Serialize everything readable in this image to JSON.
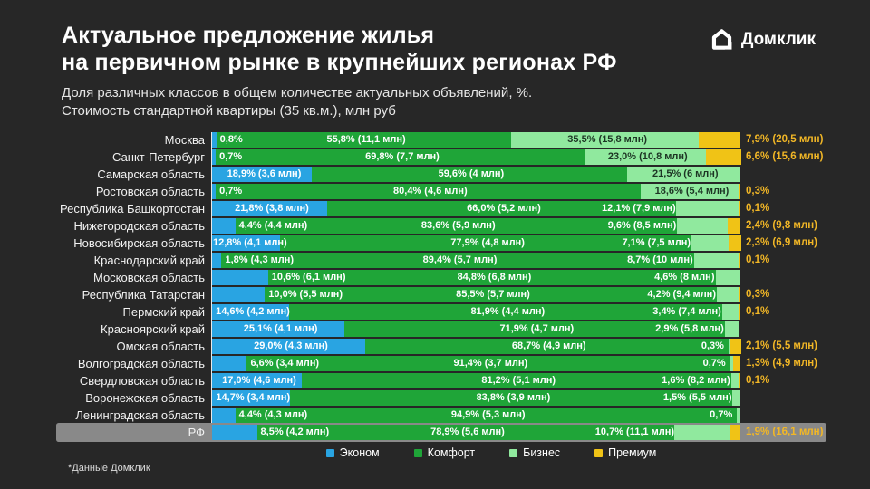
{
  "header": {
    "title_line1": "Актуальное предложение жилья",
    "title_line2": "на первичном рынке в крупнейших регионах РФ",
    "subtitle_line1": "Доля различных классов в общем количестве актуальных объявлений, %.",
    "subtitle_line2": "Стоимость стандартной квартиры (35 кв.м.), млн руб"
  },
  "logo": {
    "text": "Домклик"
  },
  "footnote": "*Данные Домклик",
  "legend": {
    "items": [
      {
        "label": "Эконом",
        "key": "econom"
      },
      {
        "label": "Комфорт",
        "key": "comfort"
      },
      {
        "label": "Бизнес",
        "key": "business"
      },
      {
        "label": "Премиум",
        "key": "premium"
      }
    ]
  },
  "chart_data": {
    "type": "bar",
    "orientation": "horizontal",
    "stacked": true,
    "unit": "%",
    "xlim": [
      0,
      100
    ],
    "grid": false,
    "legend_position": "bottom",
    "series_names": [
      "Эконом",
      "Комфорт",
      "Бизнес",
      "Премиум"
    ],
    "colors": {
      "econom": "#29a4e2",
      "comfort": "#1fa538",
      "business": "#90e99e",
      "premium": "#f0c316",
      "premium_text": "#f2b726",
      "highlight_row_bg": "#898989"
    },
    "rows": [
      {
        "region": "Москва",
        "highlight": false,
        "econom": {
          "pct": 0.8,
          "label": "0,8%"
        },
        "comfort": {
          "pct": 55.8,
          "price_mln": 11.1,
          "label": "55,8% (11,1 млн)"
        },
        "business": {
          "pct": 35.5,
          "price_mln": 15.8,
          "label": "35,5% (15,8 млн)"
        },
        "premium": {
          "pct": 7.9,
          "price_mln": 20.5,
          "label": "7,9% (20,5 млн)"
        }
      },
      {
        "region": "Санкт-Петербург",
        "highlight": false,
        "econom": {
          "pct": 0.7,
          "label": "0,7%"
        },
        "comfort": {
          "pct": 69.8,
          "price_mln": 7.7,
          "label": "69,8% (7,7 млн)"
        },
        "business": {
          "pct": 23.0,
          "price_mln": 10.8,
          "label": "23,0% (10,8 млн)"
        },
        "premium": {
          "pct": 6.6,
          "price_mln": 15.6,
          "label": "6,6% (15,6 млн)"
        }
      },
      {
        "region": "Самарская область",
        "highlight": false,
        "econom": {
          "pct": 18.9,
          "price_mln": 3.6,
          "label": "18,9% (3,6 млн)"
        },
        "comfort": {
          "pct": 59.6,
          "price_mln": 4,
          "label": "59,6% (4 млн)"
        },
        "business": {
          "pct": 21.5,
          "price_mln": 6,
          "label": "21,5% (6 млн)"
        }
      },
      {
        "region": "Ростовская область",
        "highlight": false,
        "econom": {
          "pct": 0.7,
          "label": "0,7%"
        },
        "comfort": {
          "pct": 80.4,
          "price_mln": 4.6,
          "label": "80,4% (4,6 млн)"
        },
        "business": {
          "pct": 18.6,
          "price_mln": 5.4,
          "label": "18,6% (5,4 млн)"
        },
        "premium": {
          "pct": 0.3,
          "label": "0,3%"
        }
      },
      {
        "region": "Республика Башкортостан",
        "highlight": false,
        "econom": {
          "pct": 21.8,
          "price_mln": 3.8,
          "label": "21,8% (3,8 млн)"
        },
        "comfort": {
          "pct": 66.0,
          "price_mln": 5.2,
          "label": "66,0% (5,2 млн)"
        },
        "business": {
          "pct": 12.1,
          "price_mln": 7.9,
          "label": "12,1% (7,9 млн)"
        },
        "premium": {
          "pct": 0.1,
          "label": "0,1%"
        }
      },
      {
        "region": "Нижегородская область",
        "highlight": false,
        "econom": {
          "pct": 4.4,
          "price_mln": 4.4,
          "label": "4,4% (4,4 млн)"
        },
        "comfort": {
          "pct": 83.6,
          "price_mln": 5.9,
          "label": "83,6% (5,9 млн)"
        },
        "business": {
          "pct": 9.6,
          "price_mln": 8.5,
          "label": "9,6% (8,5 млн)"
        },
        "premium": {
          "pct": 2.4,
          "price_mln": 9.8,
          "label": "2,4% (9,8 млн)"
        }
      },
      {
        "region": "Новосибирская область",
        "highlight": false,
        "econom": {
          "pct": 12.8,
          "price_mln": 4.1,
          "label": "12,8% (4,1 млн)"
        },
        "comfort": {
          "pct": 77.9,
          "price_mln": 4.8,
          "label": "77,9% (4,8 млн)"
        },
        "business": {
          "pct": 7.1,
          "price_mln": 7.5,
          "label": "7,1% (7,5 млн)"
        },
        "premium": {
          "pct": 2.3,
          "price_mln": 6.9,
          "label": "2,3% (6,9 млн)"
        }
      },
      {
        "region": "Краснодарский край",
        "highlight": false,
        "econom": {
          "pct": 1.8,
          "price_mln": 4.3,
          "label": "1,8% (4,3 млн)"
        },
        "comfort": {
          "pct": 89.4,
          "price_mln": 5.7,
          "label": "89,4% (5,7 млн)"
        },
        "business": {
          "pct": 8.7,
          "price_mln": 10,
          "label": "8,7% (10 млн)"
        },
        "premium": {
          "pct": 0.1,
          "label": "0,1%"
        }
      },
      {
        "region": "Московская область",
        "highlight": false,
        "econom": {
          "pct": 10.6,
          "price_mln": 6.1,
          "label": "10,6% (6,1 млн)"
        },
        "comfort": {
          "pct": 84.8,
          "price_mln": 6.8,
          "label": "84,8% (6,8 млн)"
        },
        "business": {
          "pct": 4.6,
          "price_mln": 8,
          "label": "4,6% (8 млн)"
        }
      },
      {
        "region": "Республика Татарстан",
        "highlight": false,
        "econom": {
          "pct": 10.0,
          "price_mln": 5.5,
          "label": "10,0% (5,5 млн)"
        },
        "comfort": {
          "pct": 85.5,
          "price_mln": 5.7,
          "label": "85,5% (5,7 млн)"
        },
        "business": {
          "pct": 4.2,
          "price_mln": 9.4,
          "label": "4,2% (9,4 млн)"
        },
        "premium": {
          "pct": 0.3,
          "label": "0,3%"
        }
      },
      {
        "region": "Пермский край",
        "highlight": false,
        "econom": {
          "pct": 14.6,
          "price_mln": 4.2,
          "label": "14,6% (4,2 млн)"
        },
        "comfort": {
          "pct": 81.9,
          "price_mln": 4.4,
          "label": "81,9% (4,4 млн)"
        },
        "business": {
          "pct": 3.4,
          "price_mln": 7.4,
          "label": "3,4% (7,4 млн)"
        },
        "premium": {
          "pct": 0.1,
          "label": "0,1%"
        }
      },
      {
        "region": "Красноярский край",
        "highlight": false,
        "econom": {
          "pct": 25.1,
          "price_mln": 4.1,
          "label": "25,1% (4,1 млн)"
        },
        "comfort": {
          "pct": 71.9,
          "price_mln": 4.7,
          "label": "71,9% (4,7 млн)"
        },
        "business": {
          "pct": 2.9,
          "price_mln": 5.8,
          "label": "2,9% (5,8 млн)"
        }
      },
      {
        "region": "Омская область",
        "highlight": false,
        "econom": {
          "pct": 29.0,
          "price_mln": 4.3,
          "label": "29,0% (4,3 млн)"
        },
        "comfort": {
          "pct": 68.7,
          "price_mln": 4.9,
          "label": "68,7% (4,9 млн)"
        },
        "business": {
          "pct": 0.3,
          "label": "0,3%"
        },
        "premium": {
          "pct": 2.1,
          "price_mln": 5.5,
          "label": "2,1% (5,5 млн)"
        }
      },
      {
        "region": "Волгоградская область",
        "highlight": false,
        "econom": {
          "pct": 6.6,
          "price_mln": 3.4,
          "label": "6,6% (3,4 млн)"
        },
        "comfort": {
          "pct": 91.4,
          "price_mln": 3.7,
          "label": "91,4% (3,7 млн)"
        },
        "business": {
          "pct": 0.7,
          "label": "0,7%"
        },
        "premium": {
          "pct": 1.3,
          "price_mln": 4.9,
          "label": "1,3% (4,9 млн)"
        }
      },
      {
        "region": "Свердловская область",
        "highlight": false,
        "econom": {
          "pct": 17.0,
          "price_mln": 4.6,
          "label": "17,0% (4,6 млн)"
        },
        "comfort": {
          "pct": 81.2,
          "price_mln": 5.1,
          "label": "81,2% (5,1 млн)"
        },
        "business": {
          "pct": 1.6,
          "price_mln": 8.2,
          "label": "1,6% (8,2 млн)"
        },
        "premium": {
          "pct": 0.1,
          "label": "0,1%"
        }
      },
      {
        "region": "Воронежская область",
        "highlight": false,
        "econom": {
          "pct": 14.7,
          "price_mln": 3.4,
          "label": "14,7% (3,4 млн)"
        },
        "comfort": {
          "pct": 83.8,
          "price_mln": 3.9,
          "label": "83,8% (3,9 млн)"
        },
        "business": {
          "pct": 1.5,
          "price_mln": 5.5,
          "label": "1,5% (5,5 млн)"
        }
      },
      {
        "region": "Ленинградская область",
        "highlight": false,
        "econom": {
          "pct": 4.4,
          "price_mln": 4.3,
          "label": "4,4% (4,3 млн)"
        },
        "comfort": {
          "pct": 94.9,
          "price_mln": 5.3,
          "label": "94,9% (5,3 млн)"
        },
        "business": {
          "pct": 0.7,
          "label": "0,7%"
        }
      },
      {
        "region": "РФ",
        "highlight": true,
        "econom": {
          "pct": 8.5,
          "price_mln": 4.2,
          "label": "8,5% (4,2 млн)"
        },
        "comfort": {
          "pct": 78.9,
          "price_mln": 5.6,
          "label": "78,9% (5,6 млн)"
        },
        "business": {
          "pct": 10.7,
          "price_mln": 11.1,
          "label": "10,7% (11,1 млн)"
        },
        "premium": {
          "pct": 1.9,
          "price_mln": 16.1,
          "label": "1,9% (16,1 млн)"
        }
      }
    ]
  }
}
